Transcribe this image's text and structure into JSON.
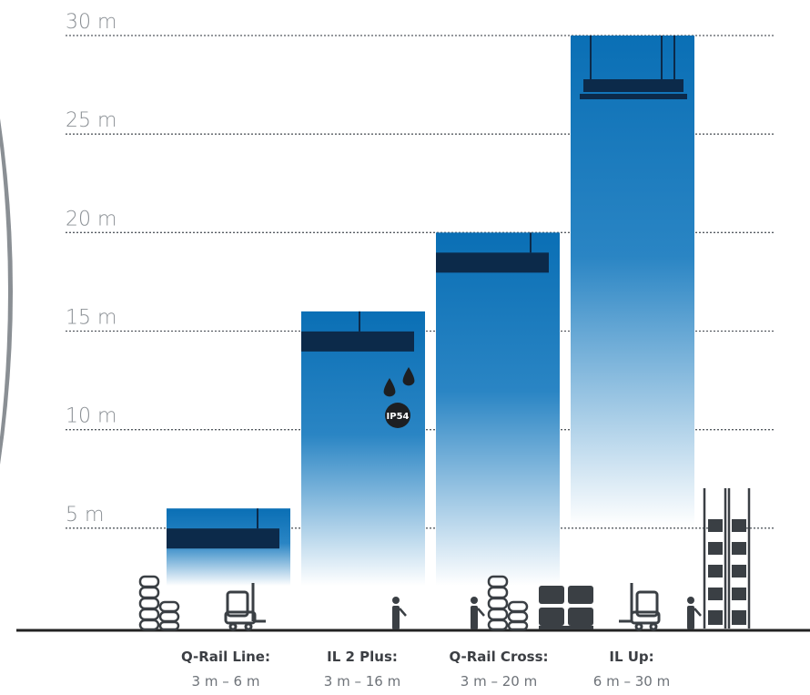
{
  "chart_data": {
    "type": "bar",
    "y_axis": {
      "ticks": [
        5,
        10,
        15,
        20,
        25,
        30
      ],
      "tick_labels": [
        "5 m",
        "10 m",
        "15 m",
        "20 m",
        "25 m",
        "30 m"
      ],
      "ylim": [
        0,
        30
      ],
      "grid": "dotted"
    },
    "series": [
      {
        "label": "Q-Rail Line:",
        "range_label": "3 m – 6 m",
        "min": 3,
        "max": 6
      },
      {
        "label": "IL 2 Plus:",
        "range_label": "3 m – 16 m",
        "min": 3,
        "max": 16
      },
      {
        "label": "Q-Rail Cross:",
        "range_label": "3 m – 20 m",
        "min": 3,
        "max": 20
      },
      {
        "label": "IL Up:",
        "range_label": "6 m – 30 m",
        "min": 6,
        "max": 30
      }
    ],
    "badge": {
      "text": "IP54",
      "product": "IL 2 Plus:"
    },
    "colors": {
      "bar": "#0a6fb5",
      "fixture": "#0c2a4a",
      "grid": "#555b61",
      "ground": "#222222",
      "scenery": "#3a3f44"
    }
  }
}
